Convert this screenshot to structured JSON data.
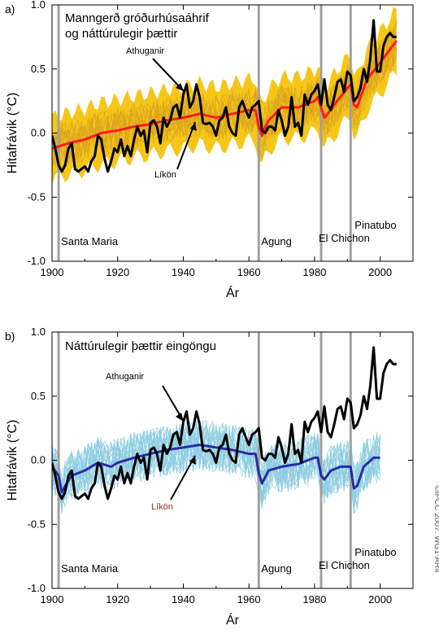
{
  "panel_a": {
    "label": "a)",
    "title_line1": "Manngerð gróðurhúsaáhrif",
    "title_line2": "og náttúrulegir þættir",
    "observed_label": "Athuganir",
    "model_label": "Líkön",
    "ylabel": "Hitafrávik (°C)",
    "xlabel": "Ár"
  },
  "panel_b": {
    "label": "b)",
    "title": "Náttúrulegir þættir eingöngu",
    "observed_label": "Athuganir",
    "model_label": "Líkön",
    "ylabel": "Hitafrávik (°C)",
    "xlabel": "Ár"
  },
  "credit": "©IPCC 2007: WG1-AR4",
  "volcanoes": [
    {
      "name": "Santa Maria",
      "year": 1902
    },
    {
      "name": "Agung",
      "year": 1963
    },
    {
      "name": "El Chichon",
      "year": 1982
    },
    {
      "name": "Pinatubo",
      "year": 1991
    }
  ],
  "colors": {
    "observed": "#000000",
    "ensemble_a": "#f5c000",
    "ensemble_a_lines": "#d9a420",
    "mean_a": "#ff1a1a",
    "ensemble_b_lines": "#8ccde0",
    "mean_b": "#2a2aa8",
    "volcano_line": "#a0a0a0"
  },
  "chart_data": [
    {
      "type": "line",
      "title": "Manngerð gróðurhúsaáhrif og náttúrulegir þættir",
      "xlabel": "Ár",
      "ylabel": "Hitafrávik (°C)",
      "xlim": [
        1900,
        2010
      ],
      "ylim": [
        -1.0,
        1.0
      ],
      "xticks": [
        1900,
        1920,
        1940,
        1960,
        1980,
        2000
      ],
      "yticks": [
        -1.0,
        -0.5,
        0.0,
        0.5,
        1.0
      ],
      "grid": false,
      "observed": {
        "name": "Athuganir",
        "x": [
          1900,
          1901,
          1902,
          1903,
          1904,
          1905,
          1906,
          1907,
          1908,
          1909,
          1910,
          1911,
          1912,
          1913,
          1914,
          1915,
          1916,
          1917,
          1918,
          1919,
          1920,
          1921,
          1922,
          1923,
          1924,
          1925,
          1926,
          1927,
          1928,
          1929,
          1930,
          1931,
          1932,
          1933,
          1934,
          1935,
          1936,
          1937,
          1938,
          1939,
          1940,
          1941,
          1942,
          1943,
          1944,
          1945,
          1946,
          1947,
          1948,
          1949,
          1950,
          1951,
          1952,
          1953,
          1954,
          1955,
          1956,
          1957,
          1958,
          1959,
          1960,
          1961,
          1962,
          1963,
          1964,
          1965,
          1966,
          1967,
          1968,
          1969,
          1970,
          1971,
          1972,
          1973,
          1974,
          1975,
          1976,
          1977,
          1978,
          1979,
          1980,
          1981,
          1982,
          1983,
          1984,
          1985,
          1986,
          1987,
          1988,
          1989,
          1990,
          1991,
          1992,
          1993,
          1994,
          1995,
          1996,
          1997,
          1998,
          1999,
          2000,
          2001,
          2002,
          2003,
          2004,
          2005
        ],
        "values": [
          -0.02,
          -0.12,
          -0.25,
          -0.3,
          -0.25,
          -0.12,
          -0.08,
          -0.28,
          -0.3,
          -0.28,
          -0.26,
          -0.3,
          -0.22,
          -0.18,
          -0.02,
          -0.05,
          -0.2,
          -0.3,
          -0.22,
          -0.12,
          -0.15,
          -0.05,
          -0.18,
          -0.1,
          -0.18,
          -0.05,
          0.05,
          -0.02,
          0.02,
          -0.15,
          0.08,
          0.1,
          0.05,
          -0.08,
          0.12,
          0.05,
          0.1,
          0.2,
          0.22,
          0.12,
          0.3,
          0.38,
          0.2,
          0.25,
          0.38,
          0.28,
          0.08,
          0.07,
          0.08,
          0.05,
          -0.02,
          0.1,
          0.12,
          0.2,
          0.05,
          0.0,
          -0.02,
          0.2,
          0.25,
          0.18,
          0.12,
          0.2,
          0.22,
          0.25,
          0.02,
          0.0,
          0.05,
          0.05,
          0.02,
          0.18,
          0.1,
          -0.02,
          0.05,
          0.28,
          0.05,
          0.08,
          -0.02,
          0.3,
          0.22,
          0.3,
          0.33,
          0.38,
          0.22,
          0.42,
          0.22,
          0.18,
          0.28,
          0.4,
          0.42,
          0.32,
          0.48,
          0.45,
          0.25,
          0.28,
          0.35,
          0.5,
          0.4,
          0.58,
          0.88,
          0.48,
          0.48,
          0.68,
          0.75,
          0.78,
          0.75,
          0.75
        ]
      },
      "model_mean": {
        "name": "Líkön",
        "x": [
          1900,
          1905,
          1910,
          1915,
          1920,
          1925,
          1930,
          1935,
          1940,
          1945,
          1950,
          1955,
          1960,
          1962,
          1963,
          1964,
          1965,
          1966,
          1968,
          1970,
          1975,
          1980,
          1981,
          1982,
          1983,
          1984,
          1986,
          1990,
          1991,
          1992,
          1993,
          1994,
          1996,
          2000,
          2005
        ],
        "values": [
          -0.12,
          -0.08,
          -0.05,
          0.0,
          0.02,
          0.05,
          0.07,
          0.1,
          0.12,
          0.15,
          0.12,
          0.15,
          0.18,
          0.18,
          0.05,
          -0.02,
          0.05,
          0.1,
          0.15,
          0.2,
          0.2,
          0.25,
          0.28,
          0.2,
          0.12,
          0.15,
          0.22,
          0.35,
          0.38,
          0.22,
          0.2,
          0.28,
          0.42,
          0.55,
          0.72
        ]
      },
      "ensemble": "yellow band of individual model runs, roughly ±0.25 around the model mean"
    },
    {
      "type": "line",
      "title": "Náttúrulegir þættir eingöngu",
      "xlabel": "Ár",
      "ylabel": "Hitafrávik (°C)",
      "xlim": [
        1900,
        2010
      ],
      "ylim": [
        -1.0,
        1.0
      ],
      "xticks": [
        1900,
        1920,
        1940,
        1960,
        1980,
        2000
      ],
      "yticks": [
        -1.0,
        -0.5,
        0.0,
        0.5,
        1.0
      ],
      "grid": false,
      "observed": {
        "name": "Athuganir",
        "x": "same as panel a",
        "values": "same as panel a"
      },
      "model_mean": {
        "name": "Líkön",
        "x": [
          1900,
          1902,
          1903,
          1904,
          1906,
          1910,
          1914,
          1918,
          1920,
          1925,
          1930,
          1935,
          1940,
          1945,
          1950,
          1955,
          1960,
          1962,
          1963,
          1964,
          1966,
          1970,
          1975,
          1980,
          1981,
          1982,
          1983,
          1985,
          1988,
          1990,
          1991,
          1992,
          1993,
          1995,
          1998,
          2000
        ],
        "values": [
          -0.05,
          -0.12,
          -0.25,
          -0.2,
          -0.12,
          -0.08,
          -0.02,
          -0.05,
          -0.02,
          0.02,
          0.05,
          0.08,
          0.1,
          0.12,
          0.1,
          0.08,
          0.05,
          0.05,
          -0.1,
          -0.18,
          -0.08,
          -0.05,
          -0.03,
          0.02,
          0.02,
          -0.12,
          -0.15,
          -0.08,
          -0.05,
          -0.05,
          -0.05,
          -0.22,
          -0.2,
          -0.05,
          0.02,
          0.02
        ]
      },
      "ensemble": "light blue individual model runs, roughly ±0.2 around the model mean"
    }
  ]
}
